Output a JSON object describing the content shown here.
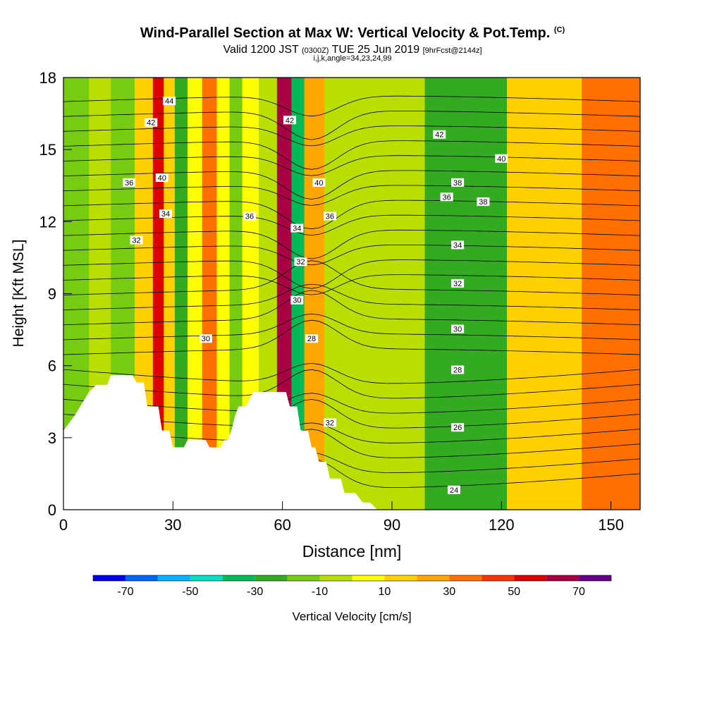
{
  "header": {
    "title": "Wind-Parallel Section at Max W: Vertical Velocity & Pot.Temp.",
    "copyright": "(C)",
    "valid_prefix": "Valid 1200 JST",
    "valid_utc": "(0300Z)",
    "valid_date": "TUE 25 Jun 2019",
    "forecast": "[9hrFcst@2144z]",
    "params": "i,j,k,angle=34,23,24,99"
  },
  "chart_data": {
    "type": "heatmap",
    "xlabel": "Distance [nm]",
    "ylabel": "Height [Kft MSL]",
    "xlim": [
      0,
      158
    ],
    "ylim": [
      0,
      18
    ],
    "x_ticks": [
      0,
      30,
      60,
      90,
      120,
      150
    ],
    "y_ticks": [
      0,
      3,
      6,
      9,
      12,
      15,
      18
    ],
    "colorbar": {
      "label": "Vertical Velocity [cm/s]",
      "tick_labels": [
        -70,
        -50,
        -30,
        -10,
        10,
        30,
        50,
        70
      ],
      "bounds": [
        -80,
        -70,
        -60,
        -50,
        -40,
        -30,
        -20,
        -10,
        0,
        10,
        20,
        30,
        40,
        50,
        60,
        70,
        80
      ],
      "colors": [
        "#0000ee",
        "#0066ff",
        "#00b4ff",
        "#00e0c0",
        "#00bb55",
        "#33aa22",
        "#77cc11",
        "#bbdd00",
        "#ffff00",
        "#ffd000",
        "#ffa500",
        "#ff7000",
        "#ff3300",
        "#dd0000",
        "#aa0044",
        "#660088"
      ]
    },
    "terrain_kft": [
      [
        0,
        3.3
      ],
      [
        3,
        3.9
      ],
      [
        7,
        4.9
      ],
      [
        9,
        5.2
      ],
      [
        12,
        5.2
      ],
      [
        13,
        5.6
      ],
      [
        19,
        5.6
      ],
      [
        20,
        5.3
      ],
      [
        22,
        5.3
      ],
      [
        23,
        4.3
      ],
      [
        26,
        4.3
      ],
      [
        27,
        3.3
      ],
      [
        29,
        3.3
      ],
      [
        30,
        2.6
      ],
      [
        33,
        2.6
      ],
      [
        34,
        2.9
      ],
      [
        39,
        2.9
      ],
      [
        40,
        2.6
      ],
      [
        43,
        2.6
      ],
      [
        44,
        2.9
      ],
      [
        45,
        2.9
      ],
      [
        46,
        3.3
      ],
      [
        47,
        3.9
      ],
      [
        48,
        4.3
      ],
      [
        50,
        4.3
      ],
      [
        52,
        4.9
      ],
      [
        61,
        4.9
      ],
      [
        62,
        4.3
      ],
      [
        64,
        4.3
      ],
      [
        65,
        3.3
      ],
      [
        67,
        3.3
      ],
      [
        68,
        2.6
      ],
      [
        69,
        2.6
      ],
      [
        70,
        2.0
      ],
      [
        72,
        2.0
      ],
      [
        73,
        1.3
      ],
      [
        76,
        1.3
      ],
      [
        77,
        0.7
      ],
      [
        80,
        0.7
      ],
      [
        82,
        0.3
      ],
      [
        84,
        0.3
      ],
      [
        86,
        0
      ]
    ],
    "wind_speed_bands": [
      {
        "x": 4,
        "value": -12
      },
      {
        "x": 10,
        "value": -2
      },
      {
        "x": 16,
        "value": -16
      },
      {
        "x": 23,
        "value": 12
      },
      {
        "x": 26,
        "value": 58
      },
      {
        "x": 29,
        "value": 15
      },
      {
        "x": 32,
        "value": -22
      },
      {
        "x": 36,
        "value": 8
      },
      {
        "x": 40,
        "value": 32
      },
      {
        "x": 44,
        "value": 4
      },
      {
        "x": 47,
        "value": -14
      },
      {
        "x": 51,
        "value": 8
      },
      {
        "x": 56,
        "value": -6
      },
      {
        "x": 61,
        "value": 68
      },
      {
        "x": 64,
        "value": -38
      },
      {
        "x": 68,
        "value": 22
      },
      {
        "x": 75,
        "value": -4
      },
      {
        "x": 90,
        "value": -8
      },
      {
        "x": 108,
        "value": -25
      },
      {
        "x": 135,
        "value": 10
      },
      {
        "x": 149,
        "value": 35
      }
    ],
    "theta_contour_labels": [
      "24",
      "26",
      "28",
      "28",
      "30",
      "30",
      "30",
      "32",
      "32",
      "32",
      "32",
      "34",
      "34",
      "34",
      "36",
      "36",
      "36",
      "36",
      "38",
      "38",
      "40",
      "40",
      "40",
      "42",
      "42",
      "42",
      "44"
    ]
  }
}
